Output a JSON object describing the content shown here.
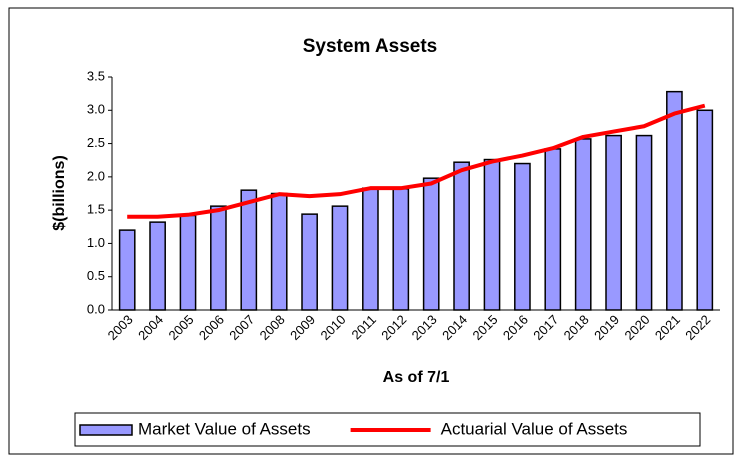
{
  "chart_data": {
    "type": "bar",
    "title": "System Assets",
    "x_label": "As of 7/1",
    "y_label": "$(billions)",
    "categories": [
      "2003",
      "2004",
      "2005",
      "2006",
      "2007",
      "2008",
      "2009",
      "2010",
      "2011",
      "2012",
      "2013",
      "2014",
      "2015",
      "2016",
      "2017",
      "2018",
      "2019",
      "2020",
      "2021",
      "2022"
    ],
    "series": [
      {
        "name": "Market Value of Assets",
        "type": "bar",
        "color": "#9999ff",
        "values": [
          1.2,
          1.32,
          1.42,
          1.56,
          1.8,
          1.75,
          1.44,
          1.56,
          1.83,
          1.82,
          1.98,
          2.22,
          2.26,
          2.2,
          2.42,
          2.57,
          2.62,
          2.62,
          3.28,
          3.0
        ]
      },
      {
        "name": "Actuarial Value of Assets",
        "type": "line",
        "color": "#ff0000",
        "values": [
          1.4,
          1.4,
          1.43,
          1.5,
          1.62,
          1.74,
          1.71,
          1.74,
          1.83,
          1.83,
          1.9,
          2.1,
          2.23,
          2.32,
          2.43,
          2.6,
          2.68,
          2.76,
          2.95,
          3.07
        ]
      }
    ],
    "ylim": [
      0,
      3.5
    ],
    "yticks": [
      {
        "value": 0,
        "label": "0.0"
      },
      0.5,
      {
        "value": 1,
        "label": "1.0"
      },
      1.5,
      {
        "value": 2,
        "label": "2.0"
      },
      2.5,
      {
        "value": 3,
        "label": "3.0"
      },
      3.5
    ],
    "legend": "bottom"
  }
}
